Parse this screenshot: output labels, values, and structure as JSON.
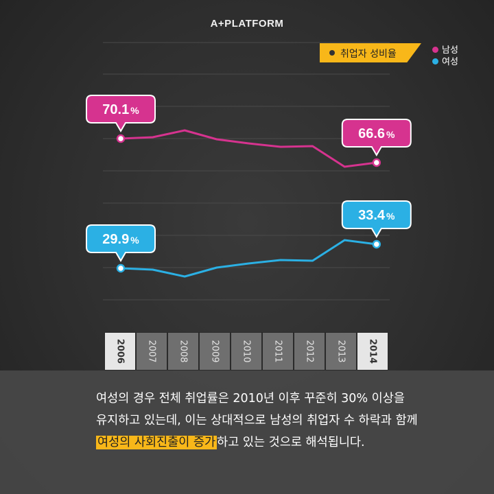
{
  "brand": {
    "logo_text": "A+PLATFORM"
  },
  "legend": {
    "box_label": "취업자 성비율",
    "items": [
      {
        "label": "남성",
        "color": "#d6338f"
      },
      {
        "label": "여성",
        "color": "#2bb0e4"
      }
    ]
  },
  "chart_data": {
    "type": "line",
    "title": "취업자 성비율",
    "categories": [
      "2006",
      "2007",
      "2008",
      "2009",
      "2010",
      "2011",
      "2012",
      "2013",
      "2014"
    ],
    "highlighted_categories": [
      "2006",
      "2014"
    ],
    "series": [
      {
        "name": "남성",
        "color": "#d6338f",
        "values": [
          70.1,
          70.3,
          71.3,
          70.0,
          69.4,
          68.9,
          69.0,
          66.0,
          66.6
        ],
        "callouts": [
          {
            "index": 0,
            "label": "70.1"
          },
          {
            "index": 8,
            "label": "66.6"
          }
        ]
      },
      {
        "name": "여성",
        "color": "#2bb0e4",
        "values": [
          29.9,
          29.7,
          28.7,
          30.0,
          30.6,
          31.1,
          31.0,
          34.0,
          33.4
        ],
        "callouts": [
          {
            "index": 0,
            "label": "29.9"
          },
          {
            "index": 8,
            "label": "33.4"
          }
        ]
      }
    ],
    "value_suffix": "%",
    "grid": true
  },
  "caption": {
    "line1": "여성의 경우 전체 취업률은 2010년 이후 꾸준히 30% 이상을",
    "line2": "유지하고 있는데, 이는 상대적으로 남성의 취업자 수 하락과 함께",
    "line3_highlight": "여성의 사회진출이 증가",
    "line3_rest": "하고 있는 것으로 해석됩니다."
  }
}
